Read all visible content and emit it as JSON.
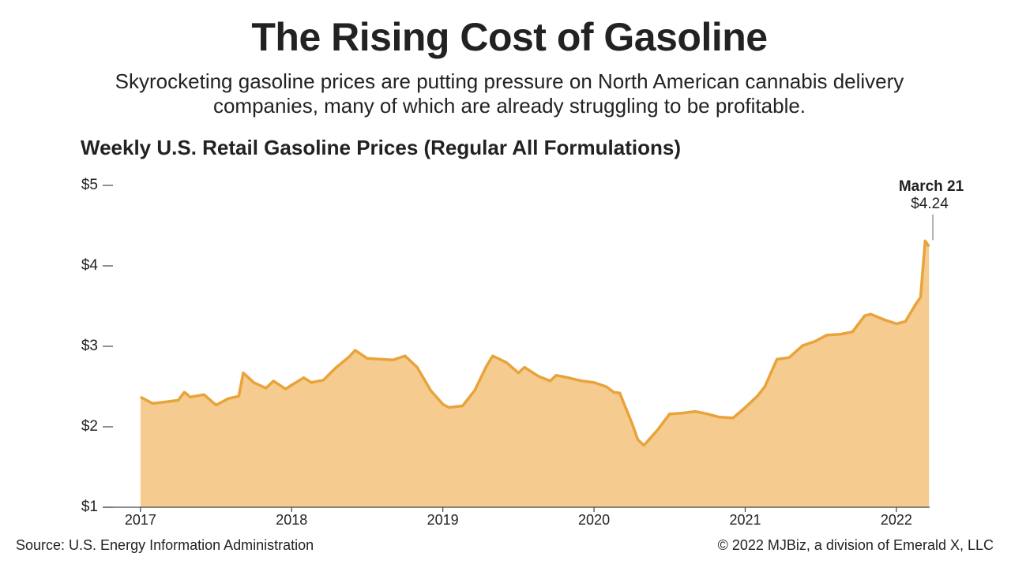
{
  "title": "The Rising Cost of Gasoline",
  "subtitle": "Skyrocketing gasoline prices are putting pressure on North American cannabis delivery companies, many of which are already struggling to be profitable.",
  "source": "Source: U.S. Energy Information Administration",
  "credit": "© 2022 MJBiz, a division of Emerald X, LLC",
  "chart_data": {
    "type": "area",
    "title": "Weekly U.S. Retail Gasoline Prices (Regular All Formulations)",
    "color": "#e8a33a",
    "fill": "#f5cb8f",
    "x": [
      2017.0,
      2017.08,
      2017.17,
      2017.25,
      2017.29,
      2017.33,
      2017.42,
      2017.5,
      2017.58,
      2017.65,
      2017.68,
      2017.75,
      2017.83,
      2017.88,
      2017.96,
      2018.0,
      2018.08,
      2018.13,
      2018.21,
      2018.29,
      2018.38,
      2018.42,
      2018.5,
      2018.58,
      2018.67,
      2018.75,
      2018.83,
      2018.92,
      2019.0,
      2019.04,
      2019.13,
      2019.21,
      2019.29,
      2019.33,
      2019.42,
      2019.5,
      2019.54,
      2019.63,
      2019.71,
      2019.75,
      2019.83,
      2019.92,
      2020.0,
      2020.08,
      2020.13,
      2020.17,
      2020.25,
      2020.29,
      2020.33,
      2020.42,
      2020.5,
      2020.58,
      2020.67,
      2020.75,
      2020.83,
      2020.92,
      2021.0,
      2021.08,
      2021.13,
      2021.21,
      2021.29,
      2021.38,
      2021.46,
      2021.54,
      2021.63,
      2021.71,
      2021.79,
      2021.83,
      2021.92,
      2022.0,
      2022.06,
      2022.13,
      2022.16,
      2022.19,
      2022.216
    ],
    "values": [
      2.37,
      2.29,
      2.31,
      2.33,
      2.43,
      2.37,
      2.4,
      2.27,
      2.35,
      2.38,
      2.67,
      2.55,
      2.48,
      2.57,
      2.47,
      2.52,
      2.61,
      2.55,
      2.58,
      2.73,
      2.87,
      2.95,
      2.85,
      2.84,
      2.83,
      2.88,
      2.74,
      2.45,
      2.28,
      2.24,
      2.26,
      2.45,
      2.76,
      2.88,
      2.8,
      2.67,
      2.74,
      2.63,
      2.57,
      2.64,
      2.61,
      2.57,
      2.55,
      2.5,
      2.43,
      2.42,
      2.05,
      1.84,
      1.77,
      1.96,
      2.16,
      2.17,
      2.19,
      2.16,
      2.12,
      2.11,
      2.24,
      2.38,
      2.5,
      2.84,
      2.86,
      3.01,
      3.06,
      3.14,
      3.15,
      3.18,
      3.38,
      3.4,
      3.33,
      3.28,
      3.31,
      3.53,
      3.61,
      4.31,
      4.24
    ],
    "xlim": [
      2016.75,
      2022.22
    ],
    "xticks": [
      2017,
      2018,
      2019,
      2020,
      2021,
      2022
    ],
    "ylim": [
      1,
      5
    ],
    "yticks": [
      {
        "value": 1,
        "label": "$1"
      },
      {
        "value": 2,
        "label": "$2"
      },
      {
        "value": 3,
        "label": "$3"
      },
      {
        "value": 4,
        "label": "$4"
      },
      {
        "value": 5,
        "label": "$5"
      }
    ],
    "annotation": {
      "date": "March 21",
      "value": 4.24,
      "value_label": "$4.24"
    }
  }
}
